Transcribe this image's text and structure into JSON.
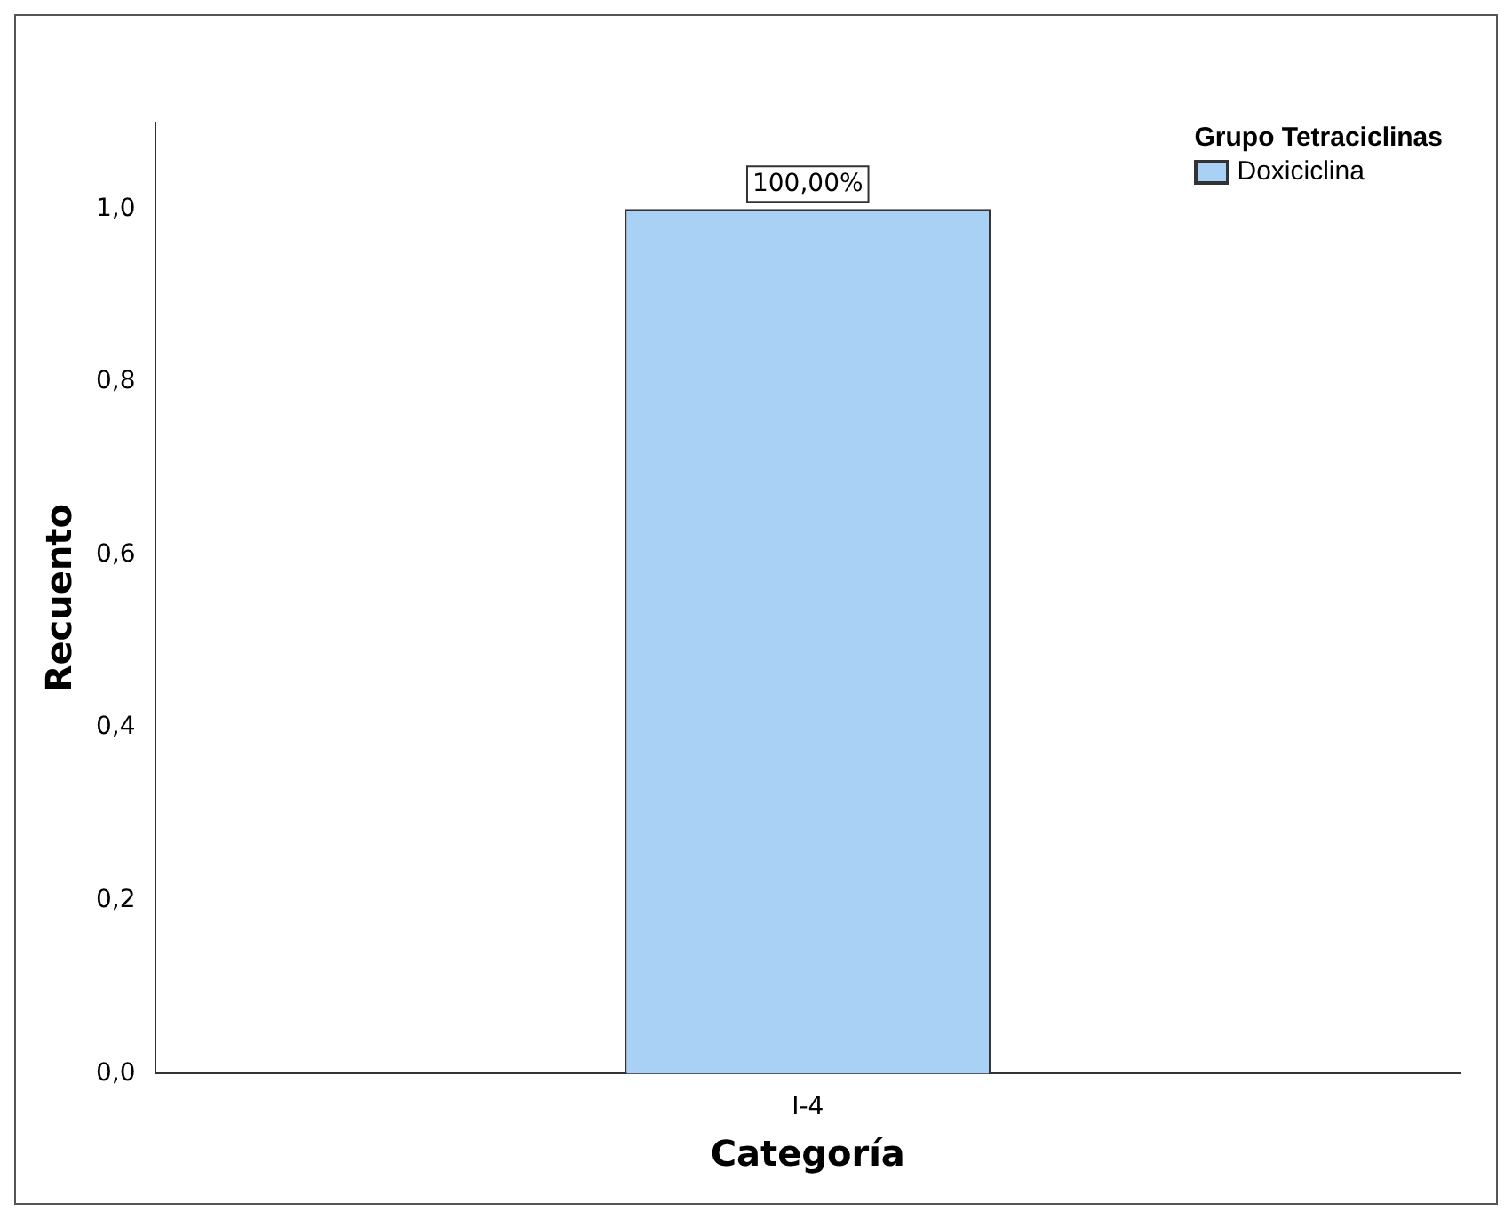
{
  "chart_data": {
    "type": "bar",
    "xlabel": "Categoría",
    "ylabel": "Recuento",
    "legend_title": "Grupo Tetraciclinas",
    "legend": "top right",
    "grid": false,
    "categories": [
      "I-4"
    ],
    "series": [
      {
        "name": "Doxiciclina",
        "color": "#a9d0f5",
        "values": [
          1.0
        ],
        "value_labels": [
          "100,00%"
        ]
      }
    ],
    "ylim": [
      0,
      1.1
    ],
    "yticks": [
      {
        "value": 0,
        "label": "0,0"
      },
      {
        "value": 0.2,
        "label": "0,2"
      },
      {
        "value": 0.4,
        "label": "0,4"
      },
      {
        "value": 0.6,
        "label": "0,6"
      },
      {
        "value": 0.8,
        "label": "0,8"
      },
      {
        "value": 1.0,
        "label": "1,0"
      }
    ]
  }
}
